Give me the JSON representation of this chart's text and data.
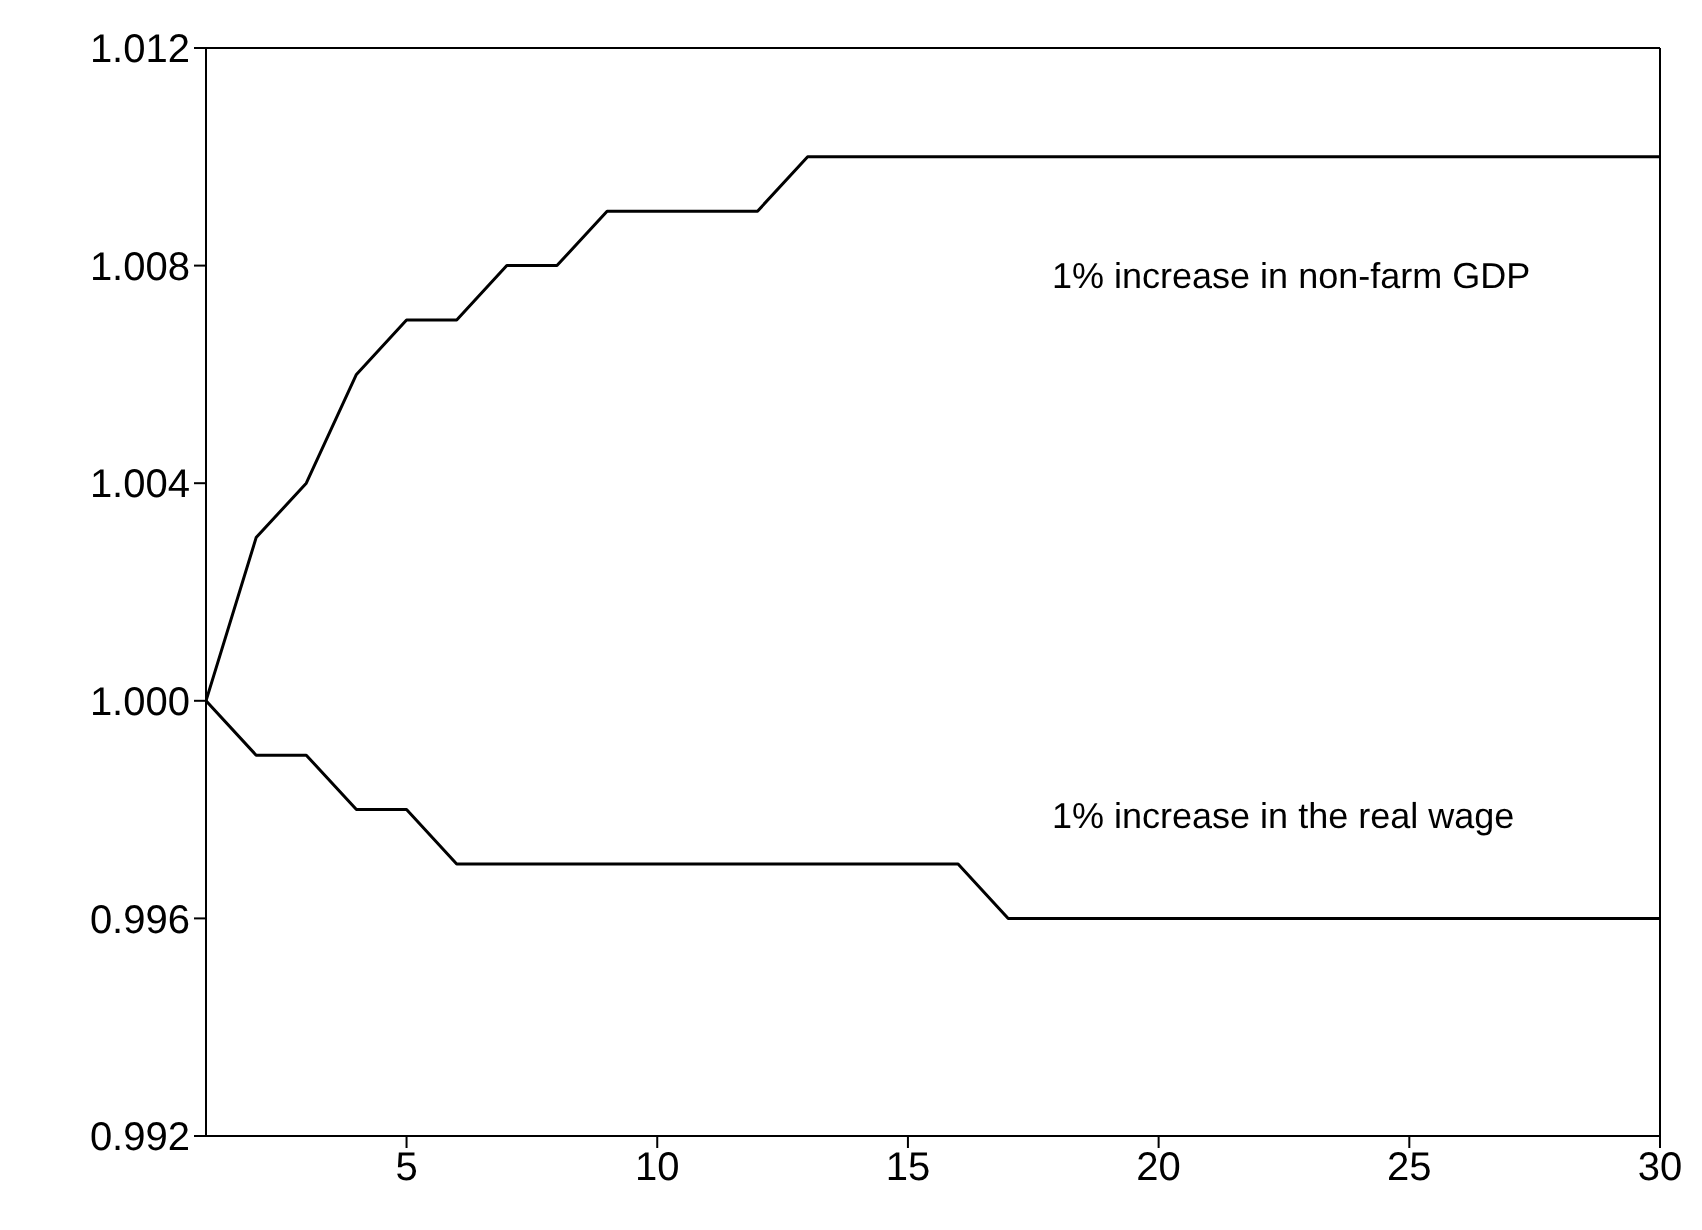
{
  "chart_data": {
    "type": "line",
    "x": [
      1,
      2,
      3,
      4,
      5,
      6,
      7,
      8,
      9,
      10,
      11,
      12,
      13,
      14,
      15,
      16,
      17,
      18,
      19,
      20,
      21,
      22,
      23,
      24,
      25,
      26,
      27,
      28,
      29,
      30
    ],
    "series": [
      {
        "color": "#000000",
        "values": [
          1.0,
          1.003,
          1.004,
          1.006,
          1.007,
          1.007,
          1.008,
          1.008,
          1.009,
          1.009,
          1.009,
          1.009,
          1.01,
          1.01,
          1.01,
          1.01,
          1.01,
          1.01,
          1.01,
          1.01,
          1.01,
          1.01,
          1.01,
          1.01,
          1.01,
          1.01,
          1.01,
          1.01,
          1.01,
          1.01
        ]
      },
      {
        "color": "#000000",
        "values": [
          1.0,
          0.999,
          0.999,
          0.998,
          0.998,
          0.997,
          0.997,
          0.997,
          0.997,
          0.997,
          0.997,
          0.997,
          0.997,
          0.997,
          0.997,
          0.997,
          0.996,
          0.996,
          0.996,
          0.996,
          0.996,
          0.996,
          0.996,
          0.996,
          0.996,
          0.996,
          0.996,
          0.996,
          0.996,
          0.996
        ]
      }
    ],
    "xlim": [
      1,
      30
    ],
    "xticks": [
      5,
      10,
      15,
      20,
      25,
      30
    ],
    "ylim": [
      0.992,
      1.012
    ],
    "yticks": [
      {
        "value": 0.992,
        "label": "0.992"
      },
      {
        "value": 0.996,
        "label": "0.996"
      },
      {
        "value": 1.0,
        "label": "1.000"
      },
      {
        "value": 1.004,
        "label": "1.004"
      },
      {
        "value": 1.008,
        "label": "1.008"
      },
      {
        "value": 1.012,
        "label": "1.012"
      }
    ],
    "annotations": [
      "1% increase in non-farm GDP",
      "1% increase in the real wage"
    ],
    "grid": false,
    "legend": false,
    "marker": "none",
    "line_style": "solid"
  }
}
